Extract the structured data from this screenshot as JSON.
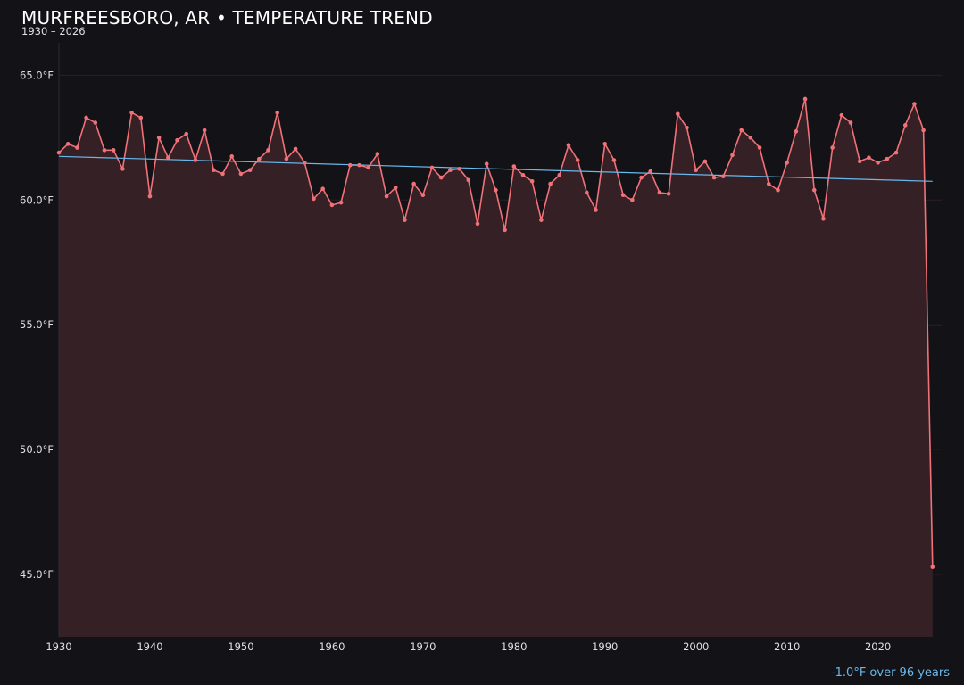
{
  "colors": {
    "background": "#131217",
    "line": "#f07278",
    "area_fill": "#352026",
    "trend": "#6ab8ea",
    "gridline": "#2a2024",
    "text": "#e0e0e4"
  },
  "chart_data": {
    "type": "line",
    "title": "MURFREESBORO, AR • TEMPERATURE TREND",
    "subtitle": "1930 – 2026",
    "xlabel": "",
    "ylabel": "",
    "xlim": [
      1930,
      2027
    ],
    "ylim": [
      42.5,
      66.3
    ],
    "x_ticks": [
      1930,
      1940,
      1950,
      1960,
      1970,
      1980,
      1990,
      2000,
      2010,
      2020
    ],
    "y_ticks": [
      45,
      50,
      55,
      60,
      65
    ],
    "y_tick_labels": [
      "45.0°F",
      "50.0°F",
      "55.0°F",
      "60.0°F",
      "65.0°F"
    ],
    "grid": "horizontal",
    "area_fill": true,
    "series": [
      {
        "x": [
          1930,
          1931,
          1932,
          1933,
          1934,
          1935,
          1936,
          1937,
          1938,
          1939,
          1940,
          1941,
          1942,
          1943,
          1944,
          1945,
          1946,
          1947,
          1948,
          1949,
          1950,
          1951,
          1952,
          1953,
          1954,
          1955,
          1956,
          1957,
          1958,
          1959,
          1960,
          1961,
          1962,
          1963,
          1964,
          1965,
          1966,
          1967,
          1968,
          1969,
          1970,
          1971,
          1972,
          1973,
          1974,
          1975,
          1976,
          1977,
          1978,
          1979,
          1980,
          1981,
          1982,
          1983,
          1984,
          1985,
          1986,
          1987,
          1988,
          1989,
          1990,
          1991,
          1992,
          1993,
          1994,
          1995,
          1996,
          1997,
          1998,
          1999,
          2000,
          2001,
          2002,
          2003,
          2004,
          2005,
          2006,
          2007,
          2008,
          2009,
          2010,
          2011,
          2012,
          2013,
          2014,
          2015,
          2016,
          2017,
          2018,
          2019,
          2020,
          2021,
          2022,
          2023,
          2024,
          2025,
          2026
        ],
        "values": [
          61.9,
          62.25,
          62.1,
          63.3,
          63.1,
          62.0,
          62.0,
          61.25,
          63.5,
          63.3,
          60.15,
          62.5,
          61.7,
          62.4,
          62.65,
          61.6,
          62.8,
          61.2,
          61.05,
          61.75,
          61.05,
          61.2,
          61.65,
          62.0,
          63.5,
          61.65,
          62.05,
          61.5,
          60.05,
          60.45,
          59.8,
          59.9,
          61.4,
          61.4,
          61.3,
          61.85,
          60.15,
          60.5,
          59.2,
          60.65,
          60.2,
          61.3,
          60.9,
          61.2,
          61.25,
          60.8,
          59.05,
          61.45,
          60.4,
          58.8,
          61.35,
          61.0,
          60.75,
          59.2,
          60.65,
          61.0,
          62.2,
          61.6,
          60.3,
          59.6,
          62.25,
          61.6,
          60.2,
          60.0,
          60.9,
          61.15,
          60.3,
          60.25,
          63.45,
          62.9,
          61.2,
          61.55,
          60.9,
          60.95,
          61.8,
          62.8,
          62.5,
          62.1,
          60.65,
          60.4,
          61.5,
          62.75,
          64.05,
          60.4,
          59.25,
          62.1,
          63.4,
          63.1,
          61.55,
          61.7,
          61.5,
          61.65,
          61.9,
          63.0,
          63.85,
          62.8,
          45.3
        ]
      }
    ],
    "trend_line": {
      "x": [
        1930,
        2026
      ],
      "values": [
        61.75,
        60.75
      ]
    },
    "annotation": "-1.0°F over 96 years"
  }
}
